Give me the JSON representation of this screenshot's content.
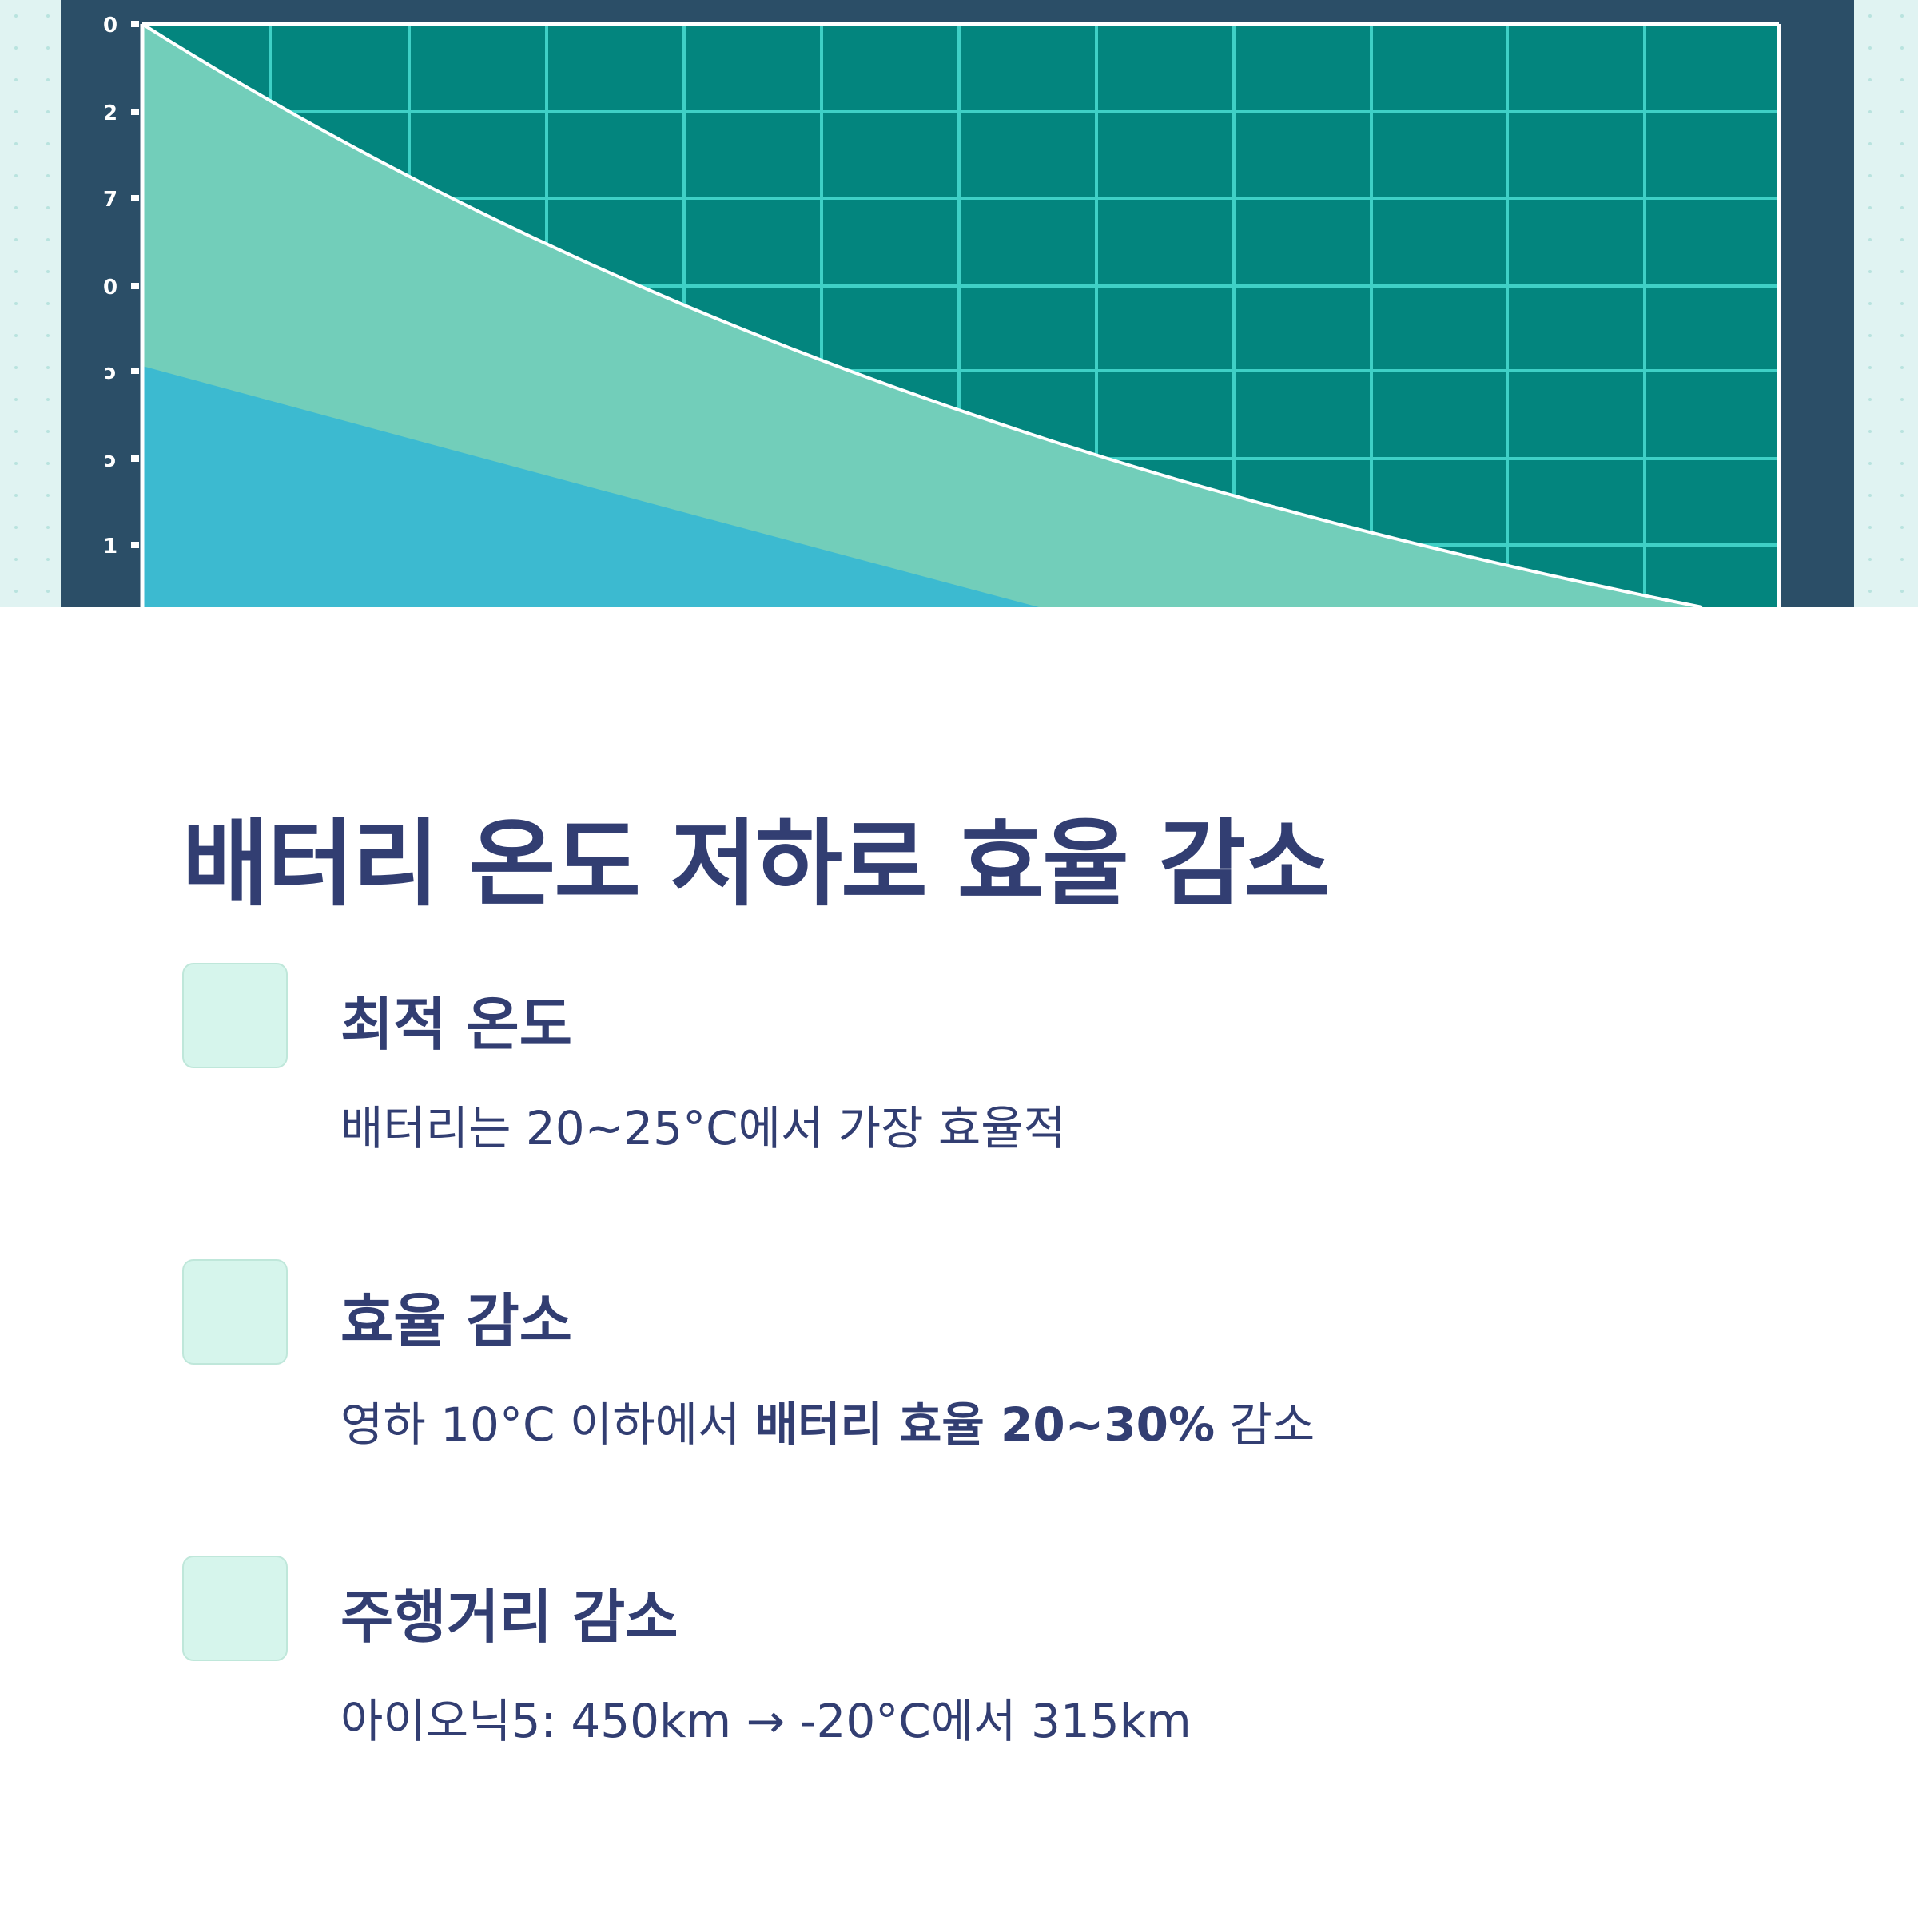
{
  "hero_chart": {
    "y_tick_labels": [
      "0",
      "2",
      "7",
      "0",
      "ɔ",
      "ɔ",
      "1"
    ],
    "colors": {
      "panel": "#2b4e67",
      "plot": "#03857e",
      "grid": "#3fd0c6",
      "upper_area": "#72ceba",
      "lower_area": "#3cbad0",
      "curve": "#ffffff",
      "background": "#e0f3f2"
    }
  },
  "title": "배터리 온도 저하로 효율 감소",
  "items": [
    {
      "icon": "mint-square-icon",
      "title": "최적 온도",
      "desc": "배터리는 20~25°C에서 가장 효율적"
    },
    {
      "icon": "mint-square-icon",
      "title": "효율 감소",
      "desc_prefix": "영하 10°C 이하에서 ",
      "desc_bold": "배터리 효율 20~30%",
      "desc_suffix": " 감소"
    },
    {
      "icon": "mint-square-icon",
      "title": "주행거리 감소",
      "desc": "아이오닉5: 450km → -20°C에서 315km"
    }
  ]
}
